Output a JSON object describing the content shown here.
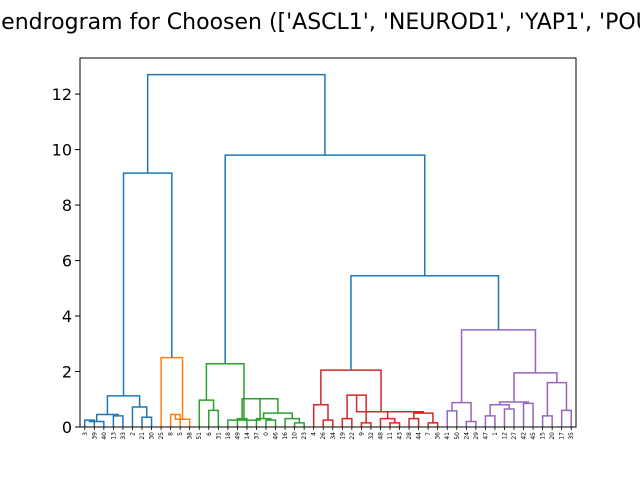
{
  "chart_data": {
    "type": "dendrogram",
    "title": "Dendrogram for Choosen (['ASCL1', 'NEUROD1', 'YAP1', 'POU",
    "xlabel": "",
    "ylabel": "",
    "ylim": [
      0,
      13.3
    ],
    "yticks": [
      "0",
      "2",
      "4",
      "6",
      "8",
      "10",
      "12"
    ],
    "grid": false,
    "colors": {
      "C0": "#1f77b4",
      "C1": "#ff7f0e",
      "C2": "#2ca02c",
      "C3": "#d62728",
      "C4": "#9467bd"
    },
    "leaves": [
      "3",
      "39",
      "40",
      "13",
      "33",
      "2",
      "21",
      "30",
      "25",
      "8",
      "5",
      "38",
      "51",
      "6",
      "31",
      "18",
      "49",
      "14",
      "37",
      "0",
      "46",
      "16",
      "10",
      "23",
      "4",
      "26",
      "34",
      "19",
      "22",
      "9",
      "32",
      "48",
      "11",
      "43",
      "28",
      "44",
      "7",
      "36",
      "41",
      "50",
      "24",
      "29",
      "47",
      "1",
      "12",
      "27",
      "42",
      "45",
      "15",
      "20",
      "17",
      "35"
    ],
    "merges": [
      {
        "l": "L0",
        "r": "L1",
        "h": 0.25,
        "c": "C0"
      },
      {
        "l": "M0",
        "r": "L2",
        "h": 0.2,
        "c": "C0"
      },
      {
        "l": "L3",
        "r": "L4",
        "h": 0.4,
        "c": "C0"
      },
      {
        "l": "M1",
        "r": "M2",
        "h": 0.45,
        "c": "C0"
      },
      {
        "l": "L6",
        "r": "L7",
        "h": 0.35,
        "c": "C0"
      },
      {
        "l": "L5",
        "r": "M4",
        "h": 0.72,
        "c": "C0"
      },
      {
        "l": "M3",
        "r": "M5",
        "h": 1.12,
        "c": "C0"
      },
      {
        "l": "L9",
        "r": "L10",
        "h": 0.45,
        "c": "C1"
      },
      {
        "l": "M7",
        "r": "L11",
        "h": 0.28,
        "c": "C1"
      },
      {
        "l": "L8",
        "r": "M8",
        "h": 2.5,
        "c": "C1"
      },
      {
        "l": "L13",
        "r": "L14",
        "h": 0.6,
        "c": "C2"
      },
      {
        "l": "L12",
        "r": "M10",
        "h": 0.97,
        "c": "C2"
      },
      {
        "l": "L16",
        "r": "L17",
        "h": 0.3,
        "c": "C2"
      },
      {
        "l": "L19",
        "r": "L20",
        "h": 0.25,
        "c": "C2"
      },
      {
        "l": "L18",
        "r": "M13",
        "h": 0.3,
        "c": "C2"
      },
      {
        "l": "L22",
        "r": "L23",
        "h": 0.15,
        "c": "C2"
      },
      {
        "l": "L21",
        "r": "M15",
        "h": 0.3,
        "c": "C2"
      },
      {
        "l": "M14",
        "r": "M16",
        "h": 0.5,
        "c": "C2"
      },
      {
        "l": "M12",
        "r": "M17",
        "h": 1.02,
        "c": "C2"
      },
      {
        "l": "L15",
        "r": "M18",
        "h": 0.25,
        "c": "C2"
      },
      {
        "l": "M11",
        "r": "M19",
        "h": 2.28,
        "c": "C2"
      },
      {
        "l": "L25",
        "r": "L26",
        "h": 0.25,
        "c": "C3"
      },
      {
        "l": "L24",
        "r": "M21",
        "h": 0.8,
        "c": "C3"
      },
      {
        "l": "L27",
        "r": "L28",
        "h": 0.3,
        "c": "C3"
      },
      {
        "l": "L29",
        "r": "L30",
        "h": 0.15,
        "c": "C3"
      },
      {
        "l": "M23",
        "r": "M24",
        "h": 1.15,
        "c": "C3"
      },
      {
        "l": "L32",
        "r": "L33",
        "h": 0.15,
        "c": "C3"
      },
      {
        "l": "L31",
        "r": "M26",
        "h": 0.3,
        "c": "C3"
      },
      {
        "l": "L34",
        "r": "L35",
        "h": 0.3,
        "c": "C3"
      },
      {
        "l": "L36",
        "r": "L37",
        "h": 0.15,
        "c": "C3"
      },
      {
        "l": "M28",
        "r": "M29",
        "h": 0.5,
        "c": "C3"
      },
      {
        "l": "M27",
        "r": "M30",
        "h": 0.55,
        "c": "C3"
      },
      {
        "l": "M25",
        "r": "M31",
        "h": 0.55,
        "c": "C3"
      },
      {
        "l": "M22",
        "r": "M32",
        "h": 2.05,
        "c": "C3"
      },
      {
        "l": "L38",
        "r": "L39",
        "h": 0.58,
        "c": "C4"
      },
      {
        "l": "L40",
        "r": "L41",
        "h": 0.2,
        "c": "C4"
      },
      {
        "l": "M34",
        "r": "M35",
        "h": 0.88,
        "c": "C4"
      },
      {
        "l": "L42",
        "r": "L43",
        "h": 0.4,
        "c": "C4"
      },
      {
        "l": "L44",
        "r": "L45",
        "h": 0.65,
        "c": "C4"
      },
      {
        "l": "M37",
        "r": "M38",
        "h": 0.8,
        "c": "C4"
      },
      {
        "l": "L46",
        "r": "L47",
        "h": 0.85,
        "c": "C4"
      },
      {
        "l": "M39",
        "r": "M40",
        "h": 0.9,
        "c": "C4"
      },
      {
        "l": "L48",
        "r": "L49",
        "h": 0.4,
        "c": "C4"
      },
      {
        "l": "L50",
        "r": "L51",
        "h": 0.6,
        "c": "C4"
      },
      {
        "l": "M42",
        "r": "M43",
        "h": 1.6,
        "c": "C4"
      },
      {
        "l": "M41",
        "r": "M44",
        "h": 1.95,
        "c": "C4"
      },
      {
        "l": "M36",
        "r": "M45",
        "h": 3.5,
        "c": "C4"
      },
      {
        "l": "M33",
        "r": "M46",
        "h": 5.45,
        "c": "C0"
      },
      {
        "l": "M20",
        "r": "M47",
        "h": 9.8,
        "c": "C0"
      },
      {
        "l": "M6",
        "r": "M9",
        "h": 9.15,
        "c": "C0"
      },
      {
        "l": "M49",
        "r": "M48",
        "h": 12.7,
        "c": "C0"
      }
    ]
  }
}
